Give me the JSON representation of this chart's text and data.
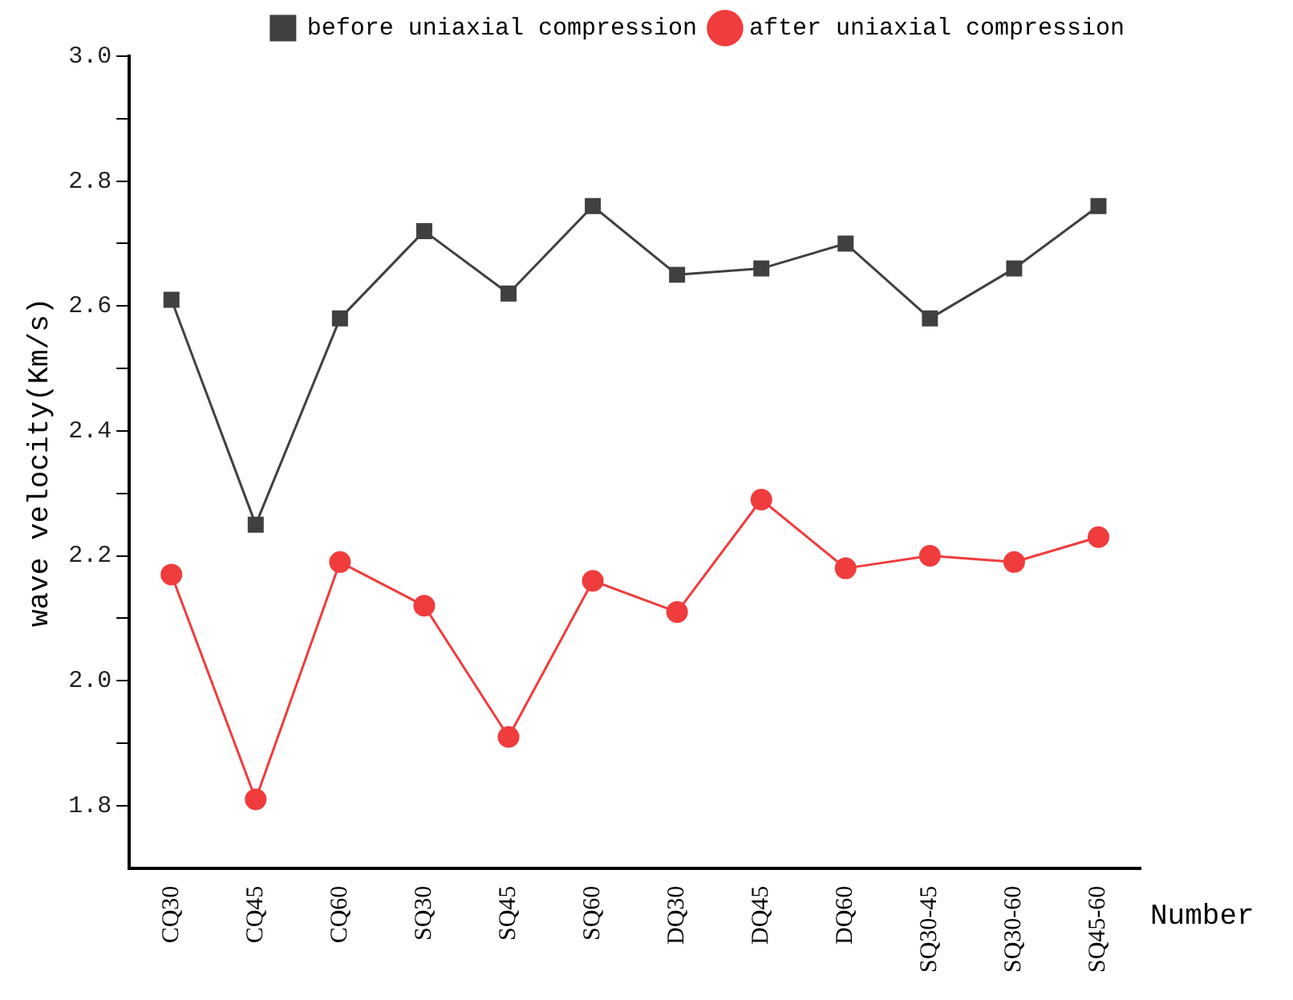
{
  "chart_data": {
    "type": "line",
    "categories": [
      "CQ30",
      "CQ45",
      "CQ60",
      "SQ30",
      "SQ45",
      "SQ60",
      "DQ30",
      "DQ45",
      "DQ60",
      "SQ30-45",
      "SQ30-60",
      "SQ45-60"
    ],
    "series": [
      {
        "name": "before uniaxial compression",
        "color": "#404040",
        "marker": "square",
        "values": [
          2.61,
          2.25,
          2.58,
          2.72,
          2.62,
          2.76,
          2.65,
          2.66,
          2.7,
          2.58,
          2.66,
          2.76
        ]
      },
      {
        "name": "after uniaxial compression",
        "color": "#f03c3c",
        "marker": "circle",
        "values": [
          2.17,
          1.81,
          2.19,
          2.12,
          1.91,
          2.16,
          2.11,
          2.29,
          2.18,
          2.2,
          2.19,
          2.23
        ]
      }
    ],
    "xlabel": "Number",
    "ylabel": "wave velocity(Km/s)",
    "ylim": [
      1.7,
      3.0
    ],
    "yticks": [
      1.8,
      {
        "value": 1.9,
        "label": null
      },
      {
        "value": 2.0,
        "label": "2.0"
      },
      {
        "value": 2.1,
        "label": null
      },
      2.2,
      {
        "value": 2.3,
        "label": null
      },
      2.4,
      {
        "value": 2.5,
        "label": null
      },
      2.6,
      {
        "value": 2.7,
        "label": null
      },
      2.8,
      {
        "value": 2.9,
        "label": null
      },
      {
        "value": 3.0,
        "label": "3.0"
      }
    ],
    "grid": false,
    "legend": "top right",
    "line_style": "solid"
  }
}
